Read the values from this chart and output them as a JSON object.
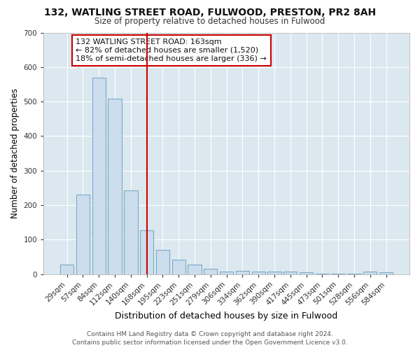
{
  "title1": "132, WATLING STREET ROAD, FULWOOD, PRESTON, PR2 8AH",
  "title2": "Size of property relative to detached houses in Fulwood",
  "xlabel": "Distribution of detached houses by size in Fulwood",
  "ylabel": "Number of detached properties",
  "categories": [
    "29sqm",
    "57sqm",
    "84sqm",
    "112sqm",
    "140sqm",
    "168sqm",
    "195sqm",
    "223sqm",
    "251sqm",
    "279sqm",
    "306sqm",
    "334sqm",
    "362sqm",
    "390sqm",
    "417sqm",
    "445sqm",
    "473sqm",
    "501sqm",
    "528sqm",
    "556sqm",
    "584sqm"
  ],
  "values": [
    27,
    230,
    570,
    508,
    242,
    128,
    70,
    42,
    27,
    15,
    8,
    10,
    8,
    8,
    7,
    5,
    1,
    1,
    1,
    8,
    5
  ],
  "bar_color": "#ccdded",
  "bar_edgecolor": "#7aaac8",
  "vline_x_idx": 5,
  "vline_color": "#cc0000",
  "annotation_line1": "132 WATLING STREET ROAD: 163sqm",
  "annotation_line2": "← 82% of detached houses are smaller (1,520)",
  "annotation_line3": "18% of semi-detached houses are larger (336) →",
  "annotation_box_color": "#cc0000",
  "ylim": [
    0,
    700
  ],
  "yticks": [
    0,
    100,
    200,
    300,
    400,
    500,
    600,
    700
  ],
  "footer": "Contains HM Land Registry data © Crown copyright and database right 2024.\nContains public sector information licensed under the Open Government Licence v3.0.",
  "fig_bg_color": "#ffffff",
  "plot_bg_color": "#dce8f0"
}
